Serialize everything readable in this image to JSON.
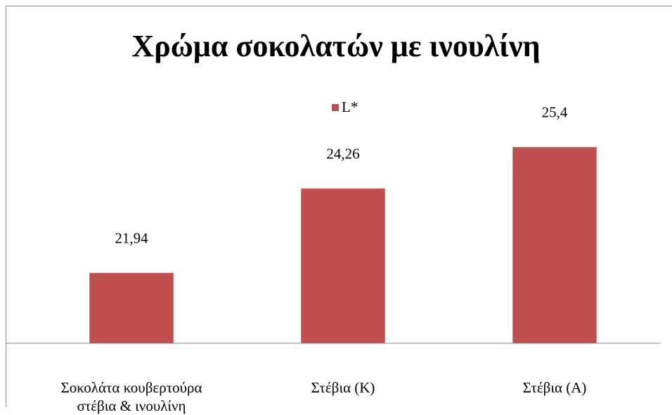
{
  "chart_data": {
    "type": "bar",
    "title": "Χρώμα σοκολατών με ινουλίνη",
    "categories": [
      "Σοκολάτα κουβερτούρα στέβια & ινουλίνη",
      "Στέβια (Κ)",
      "Στέβια (Α)"
    ],
    "series": [
      {
        "name": "L*",
        "color": "#c0504d",
        "values": [
          21.94,
          24.26,
          25.4
        ],
        "value_labels": [
          "21,94",
          "24,26",
          "25,4"
        ]
      }
    ],
    "ylim": [
      20,
      26
    ],
    "legend": "top"
  }
}
